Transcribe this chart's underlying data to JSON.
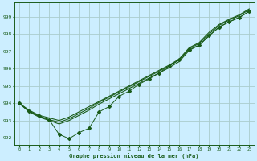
{
  "xlabel": "Graphe pression niveau de la mer (hPa)",
  "bg_color": "#cceeff",
  "grid_color": "#aacccc",
  "line_color": "#1a5c1a",
  "xlim": [
    -0.5,
    23.5
  ],
  "ylim": [
    991.6,
    999.8
  ],
  "yticks": [
    992,
    993,
    994,
    995,
    996,
    997,
    998,
    999
  ],
  "xticks": [
    0,
    1,
    2,
    3,
    4,
    5,
    6,
    7,
    8,
    9,
    10,
    11,
    12,
    13,
    14,
    15,
    16,
    17,
    18,
    19,
    20,
    21,
    22,
    23
  ],
  "line1": [
    994.0,
    993.6,
    993.3,
    993.15,
    993.0,
    993.2,
    993.5,
    993.8,
    994.1,
    994.4,
    994.7,
    995.0,
    995.3,
    995.6,
    995.9,
    996.2,
    996.55,
    997.2,
    997.5,
    998.1,
    998.55,
    998.85,
    999.1,
    999.45
  ],
  "line2": [
    994.0,
    993.55,
    993.25,
    993.05,
    992.9,
    993.1,
    993.4,
    993.7,
    994.05,
    994.35,
    994.65,
    994.95,
    995.25,
    995.55,
    995.85,
    996.15,
    996.5,
    997.15,
    997.45,
    998.0,
    998.5,
    998.8,
    999.05,
    999.4
  ],
  "line3": [
    994.0,
    993.5,
    993.2,
    993.0,
    992.8,
    993.0,
    993.3,
    993.6,
    993.95,
    994.25,
    994.55,
    994.85,
    995.15,
    995.45,
    995.75,
    996.05,
    996.4,
    997.05,
    997.35,
    997.9,
    998.4,
    998.7,
    998.95,
    999.3
  ],
  "line_marker": [
    994.0,
    993.55,
    993.25,
    993.05,
    992.2,
    991.95,
    992.3,
    992.55,
    993.5,
    993.8,
    994.4,
    994.7,
    995.1,
    995.4,
    995.75,
    996.15,
    996.5,
    997.1,
    997.35,
    997.9,
    998.4,
    998.7,
    998.95,
    999.3
  ]
}
